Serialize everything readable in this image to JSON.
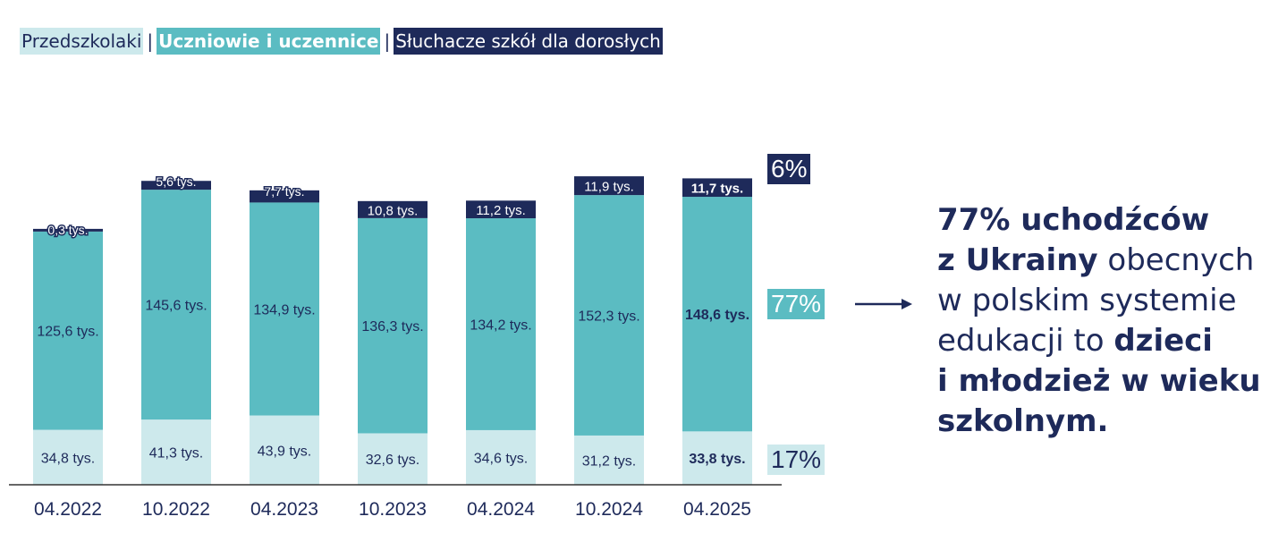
{
  "legend": {
    "preschool": "Przedszkolaki",
    "students": "Uczniowie i uczennice",
    "adults": "Słuchacze szkół dla dorosłych",
    "separator": "|"
  },
  "colors": {
    "preschool": "#cde9ec",
    "students": "#5bbcc2",
    "adults": "#1e2a5a",
    "axis": "#333333",
    "text": "#1e2a5a"
  },
  "chart_data": {
    "type": "bar",
    "stacked": true,
    "categories": [
      "04.2022",
      "10.2022",
      "04.2023",
      "10.2023",
      "04.2024",
      "10.2024",
      "04.2025"
    ],
    "series": [
      {
        "name": "Przedszkolaki",
        "values": [
          34.8,
          41.3,
          43.9,
          32.6,
          34.6,
          31.2,
          33.8
        ],
        "labels": [
          "34,8 tys.",
          "41,3 tys.",
          "43,9 tys.",
          "32,6 tys.",
          "34,6 tys.",
          "31,2 tys.",
          "33,8 tys."
        ]
      },
      {
        "name": "Uczniowie i uczennice",
        "values": [
          125.6,
          145.6,
          134.9,
          136.3,
          134.2,
          152.3,
          148.6
        ],
        "labels": [
          "125,6 tys.",
          "145,6 tys.",
          "134,9 tys.",
          "136,3 tys.",
          "134,2 tys.",
          "152,3 tys.",
          "148,6 tys."
        ]
      },
      {
        "name": "Słuchacze szkół dla dorosłych",
        "values": [
          0.3,
          5.6,
          7.7,
          10.8,
          11.2,
          11.9,
          11.7
        ],
        "labels": [
          "0,3 tys.",
          "5,6 tys.",
          "7,7 tys.",
          "10,8 tys.",
          "11,2 tys.",
          "11,9 tys.",
          "11,7 tys."
        ]
      }
    ],
    "bold_last_category": true,
    "shares": {
      "adults": "6%",
      "students": "77%",
      "preschool": "17%"
    }
  },
  "message": {
    "l1_bold": "77% uchodźców",
    "l2_bold": "z Ukrainy",
    "l2_rest": " obecnych",
    "l3": "w polskim systemie",
    "l4_rest": "edukacji to ",
    "l4_bold": "dzieci",
    "l5_bold": "i młodzież w wieku",
    "l6_bold": "szkolnym."
  }
}
